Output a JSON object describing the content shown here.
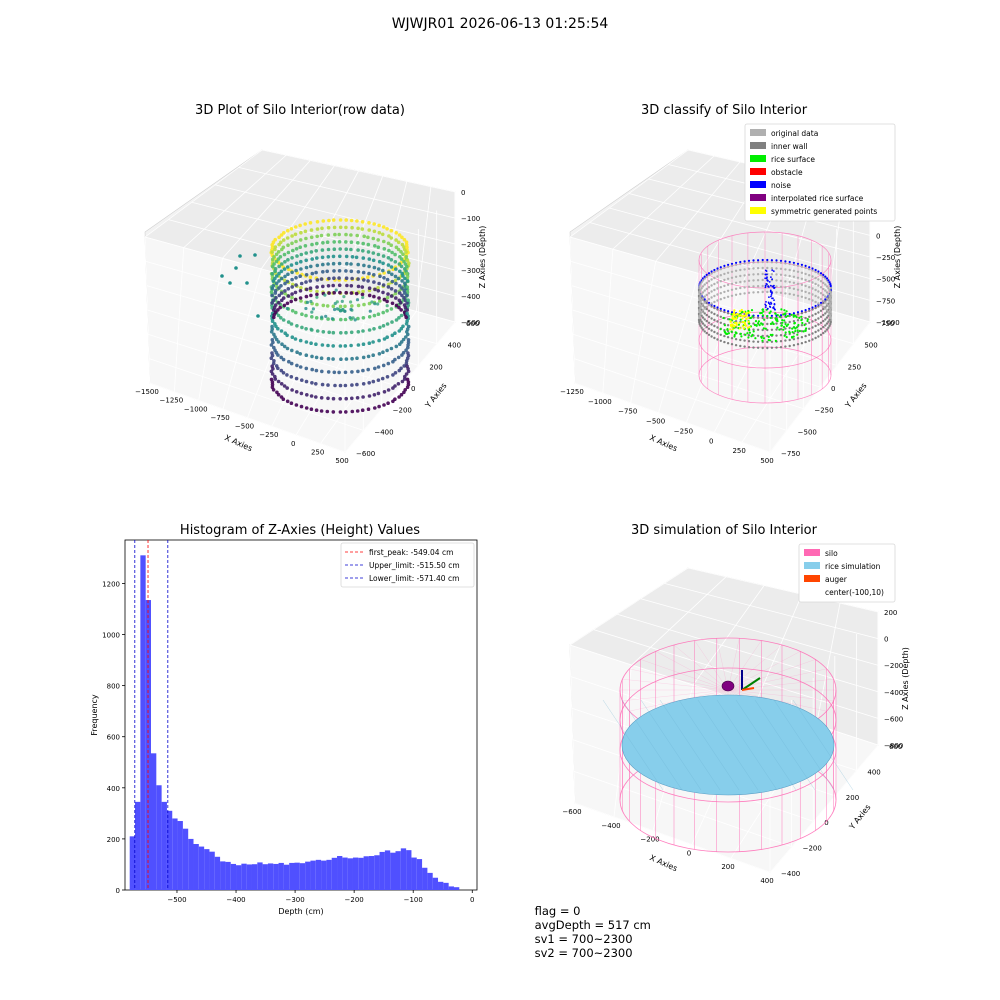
{
  "figure_title": "WJWJR01 2026-06-13 01:25:54",
  "status_line": {
    "flag": "flag = 0",
    "avg_depth": "avgDepth = 517 cm",
    "sv1": "sv1 = 700~2300",
    "sv2": "sv2 = 700~2300"
  },
  "colors": {
    "original_data": "#b0b0b0",
    "inner_wall": "#808080",
    "rice_surface": "#00ee00",
    "obstacle": "#ff0000",
    "noise": "#0000ff",
    "interpolated_rice_surface": "#800080",
    "symmetric_generated_points": "#ffff00",
    "silo": "#ff69b4",
    "rice_simulation": "#87ceeb",
    "auger": "#ff4500",
    "hist_bar": "#5050ff",
    "first_peak_line": "#ff0000",
    "limit_line": "#0000cc"
  },
  "chart_data": [
    {
      "type": "scatter",
      "title": "3D Plot of Silo Interior(row data)",
      "xlabel": "X Axies",
      "ylabel": "Y Axies",
      "zlabel": "Z Axies (Depth)",
      "x_ticks": [
        "−1500",
        "−1250",
        "−1000",
        "−750",
        "−500",
        "−250",
        "0",
        "250",
        "500"
      ],
      "y_ticks": [
        "−600",
        "−400",
        "−200",
        "0",
        "200",
        "400",
        "600"
      ],
      "z_ticks": [
        "−500",
        "−400",
        "−300",
        "−200",
        "−100",
        "0"
      ],
      "colormap": "viridis"
    },
    {
      "type": "scatter",
      "title": "3D classify of Silo Interior",
      "xlabel": "X Axies",
      "ylabel": "Y Axies",
      "zlabel": "Z Axies (Depth)",
      "x_ticks": [
        "−1250",
        "−1000",
        "−750",
        "−500",
        "−250",
        "0",
        "250",
        "500"
      ],
      "y_ticks": [
        "−750",
        "−500",
        "−250",
        "0",
        "250",
        "500",
        "750"
      ],
      "z_ticks": [
        "−1000",
        "−750",
        "−500",
        "−250",
        "0",
        "250",
        "500"
      ],
      "legend": [
        "original data",
        "inner wall",
        "rice surface",
        "obstacle",
        "noise",
        "interpolated rice surface",
        "symmetric generated points"
      ],
      "legend_placement": "top-right"
    },
    {
      "type": "bar",
      "title": "Histogram of Z-Axies (Height) Values",
      "xlabel": "Depth (cm)",
      "ylabel": "Frequency",
      "xlim": [
        -588,
        8
      ],
      "ylim": [
        0,
        1370
      ],
      "x_ticks": [
        -500,
        -400,
        -300,
        -200,
        -100,
        0
      ],
      "x_tick_labels": [
        "−500",
        "−400",
        "−300",
        "−200",
        "−100",
        "0"
      ],
      "y_ticks": [
        0,
        200,
        400,
        600,
        800,
        1000,
        1200
      ],
      "y_tick_labels": [
        "0",
        "200",
        "400",
        "600",
        "800",
        "1000",
        "1200"
      ],
      "bins": [
        [
          -580,
          -571,
          210
        ],
        [
          -571,
          -562,
          345
        ],
        [
          -562,
          -553,
          1310
        ],
        [
          -553,
          -544,
          1135
        ],
        [
          -544,
          -535,
          535
        ],
        [
          -535,
          -526,
          410
        ],
        [
          -526,
          -517,
          345
        ],
        [
          -517,
          -508,
          310
        ],
        [
          -508,
          -499,
          280
        ],
        [
          -499,
          -490,
          270
        ],
        [
          -490,
          -481,
          240
        ],
        [
          -481,
          -472,
          200
        ],
        [
          -472,
          -463,
          180
        ],
        [
          -463,
          -454,
          170
        ],
        [
          -454,
          -445,
          160
        ],
        [
          -445,
          -436,
          150
        ],
        [
          -436,
          -427,
          130
        ],
        [
          -427,
          -418,
          112
        ],
        [
          -418,
          -409,
          110
        ],
        [
          -409,
          -400,
          102
        ],
        [
          -400,
          -391,
          97
        ],
        [
          -391,
          -382,
          103
        ],
        [
          -382,
          -373,
          100
        ],
        [
          -373,
          -364,
          101
        ],
        [
          -364,
          -355,
          108
        ],
        [
          -355,
          -346,
          101
        ],
        [
          -346,
          -337,
          104
        ],
        [
          -337,
          -328,
          102
        ],
        [
          -328,
          -319,
          106
        ],
        [
          -319,
          -310,
          99
        ],
        [
          -310,
          -301,
          106
        ],
        [
          -301,
          -292,
          107
        ],
        [
          -292,
          -283,
          105
        ],
        [
          -283,
          -274,
          111
        ],
        [
          -274,
          -265,
          115
        ],
        [
          -265,
          -256,
          118
        ],
        [
          -256,
          -247,
          115
        ],
        [
          -247,
          -238,
          118
        ],
        [
          -238,
          -229,
          126
        ],
        [
          -229,
          -220,
          133
        ],
        [
          -220,
          -211,
          127
        ],
        [
          -211,
          -202,
          124
        ],
        [
          -202,
          -193,
          127
        ],
        [
          -193,
          -184,
          126
        ],
        [
          -184,
          -175,
          132
        ],
        [
          -175,
          -166,
          133
        ],
        [
          -166,
          -157,
          136
        ],
        [
          -157,
          -148,
          149
        ],
        [
          -148,
          -139,
          155
        ],
        [
          -139,
          -130,
          146
        ],
        [
          -130,
          -121,
          152
        ],
        [
          -121,
          -112,
          163
        ],
        [
          -112,
          -103,
          156
        ],
        [
          -103,
          -94,
          127
        ],
        [
          -94,
          -85,
          121
        ],
        [
          -85,
          -76,
          87
        ],
        [
          -76,
          -67,
          67
        ],
        [
          -67,
          -58,
          48
        ],
        [
          -58,
          -49,
          32
        ],
        [
          -49,
          -40,
          28
        ],
        [
          -40,
          -31,
          14
        ],
        [
          -31,
          -22,
          11
        ]
      ],
      "first_peak": {
        "label": "first_peak: -549.04 cm",
        "value": -549.04
      },
      "upper_limit": {
        "label": "Upper_limit: -515.50 cm",
        "value": -515.5
      },
      "lower_limit": {
        "label": "Lower_limit: -571.40 cm",
        "value": -571.4
      },
      "legend_placement": "top-right"
    },
    {
      "type": "scatter",
      "title": "3D simulation of Silo Interior",
      "xlabel": "X Axies",
      "ylabel": "Y Axies",
      "zlabel": "Z Axies (Depth)",
      "x_ticks": [
        "−600",
        "−400",
        "−200",
        "0",
        "200",
        "400"
      ],
      "y_ticks": [
        "−400",
        "−200",
        "0",
        "200",
        "400",
        "600"
      ],
      "z_ticks": [
        "−800",
        "−600",
        "−400",
        "−200",
        "0",
        "200"
      ],
      "legend": [
        "silo",
        "rice simulation",
        "auger",
        "center(-100,10)"
      ],
      "legend_placement": "top-right"
    }
  ]
}
